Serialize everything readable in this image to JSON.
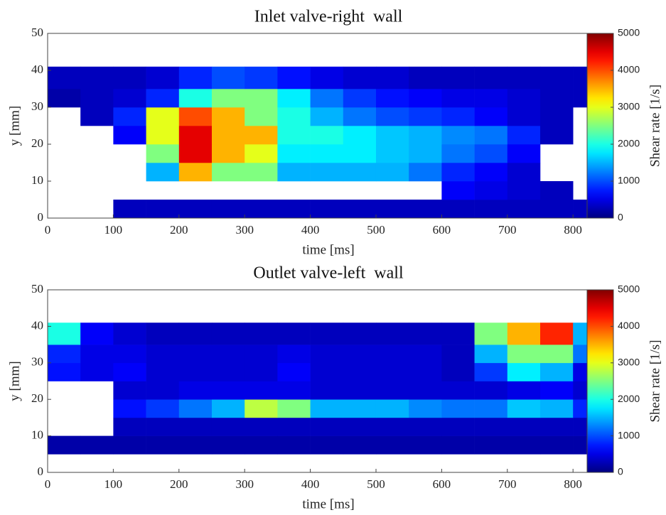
{
  "chart_data": [
    {
      "type": "heatmap",
      "title": "Inlet valve-right  wall",
      "xlabel": "time [ms]",
      "ylabel": "y [mm]",
      "colorbar_label": "Shear rate [1/s]",
      "colormap": "jet",
      "xlim": [
        0,
        855
      ],
      "ylim": [
        0,
        50
      ],
      "xticks": [
        0,
        100,
        200,
        300,
        400,
        500,
        600,
        700,
        800
      ],
      "yticks": [
        0,
        10,
        20,
        30,
        40,
        50
      ],
      "clim": [
        0,
        5000
      ],
      "cticks": [
        0,
        1000,
        2000,
        3000,
        4000,
        5000
      ],
      "xbins": [
        0,
        50,
        100,
        150,
        200,
        250,
        300,
        350,
        400,
        450,
        500,
        550,
        600,
        650,
        700,
        750,
        800,
        855
      ],
      "ybins": [
        0,
        5,
        10,
        15,
        20,
        25,
        30,
        35,
        41
      ],
      "values": [
        [
          null,
          null,
          300,
          300,
          300,
          300,
          300,
          300,
          300,
          300,
          300,
          300,
          300,
          300,
          300,
          300,
          300
        ],
        [
          null,
          null,
          null,
          null,
          null,
          null,
          null,
          null,
          null,
          null,
          null,
          null,
          600,
          500,
          400,
          300,
          null
        ],
        [
          null,
          null,
          null,
          1500,
          3500,
          2500,
          2500,
          1500,
          1500,
          1500,
          1500,
          1200,
          800,
          600,
          400,
          null,
          null
        ],
        [
          null,
          null,
          null,
          2500,
          4500,
          3500,
          3000,
          1800,
          1800,
          1800,
          1600,
          1500,
          1200,
          1000,
          600,
          null,
          null
        ],
        [
          null,
          null,
          600,
          3000,
          4500,
          3500,
          3500,
          2000,
          2000,
          1800,
          1600,
          1500,
          1300,
          1200,
          800,
          300,
          null
        ],
        [
          null,
          300,
          800,
          3000,
          4000,
          3500,
          2500,
          2000,
          1500,
          1200,
          1000,
          900,
          800,
          600,
          400,
          300,
          null
        ],
        [
          200,
          300,
          400,
          800,
          2000,
          2500,
          2500,
          1800,
          1200,
          900,
          700,
          600,
          500,
          500,
          400,
          300,
          300
        ],
        [
          300,
          300,
          300,
          400,
          800,
          1000,
          900,
          700,
          500,
          400,
          400,
          300,
          300,
          300,
          300,
          300,
          300
        ]
      ]
    },
    {
      "type": "heatmap",
      "title": "Outlet valve-left  wall",
      "xlabel": "time [ms]",
      "ylabel": "y [mm]",
      "colorbar_label": "Shear rate [1/s]",
      "colormap": "jet",
      "xlim": [
        0,
        855
      ],
      "ylim": [
        0,
        50
      ],
      "xticks": [
        0,
        100,
        200,
        300,
        400,
        500,
        600,
        700,
        800
      ],
      "yticks": [
        0,
        10,
        20,
        30,
        40,
        50
      ],
      "clim": [
        0,
        5000
      ],
      "cticks": [
        0,
        1000,
        2000,
        3000,
        4000,
        5000
      ],
      "xbins": [
        0,
        50,
        100,
        150,
        200,
        250,
        300,
        350,
        400,
        450,
        500,
        550,
        600,
        650,
        700,
        750,
        800,
        855
      ],
      "ybins": [
        0,
        5,
        10,
        15,
        20,
        25,
        30,
        35,
        41
      ],
      "values": [
        [
          null,
          null,
          null,
          null,
          null,
          null,
          null,
          null,
          null,
          null,
          null,
          null,
          null,
          null,
          null,
          null,
          null
        ],
        [
          200,
          200,
          200,
          200,
          200,
          200,
          200,
          200,
          200,
          200,
          200,
          200,
          200,
          200,
          200,
          200,
          200
        ],
        [
          null,
          null,
          300,
          300,
          300,
          300,
          300,
          300,
          300,
          300,
          300,
          300,
          300,
          300,
          300,
          300,
          300
        ],
        [
          null,
          null,
          700,
          900,
          1200,
          1500,
          2800,
          2500,
          1500,
          1500,
          1500,
          1300,
          1200,
          1200,
          1600,
          1500,
          800
        ],
        [
          null,
          null,
          400,
          400,
          500,
          500,
          500,
          500,
          400,
          400,
          400,
          400,
          400,
          400,
          500,
          600,
          400
        ],
        [
          700,
          500,
          600,
          400,
          400,
          400,
          400,
          600,
          400,
          400,
          400,
          400,
          300,
          900,
          1800,
          1500,
          500
        ],
        [
          800,
          500,
          500,
          400,
          400,
          400,
          400,
          500,
          400,
          400,
          400,
          400,
          300,
          1500,
          2500,
          2500,
          1200
        ],
        [
          2000,
          600,
          400,
          300,
          300,
          300,
          300,
          300,
          300,
          300,
          300,
          300,
          300,
          2500,
          3500,
          4200,
          1500
        ]
      ]
    }
  ]
}
